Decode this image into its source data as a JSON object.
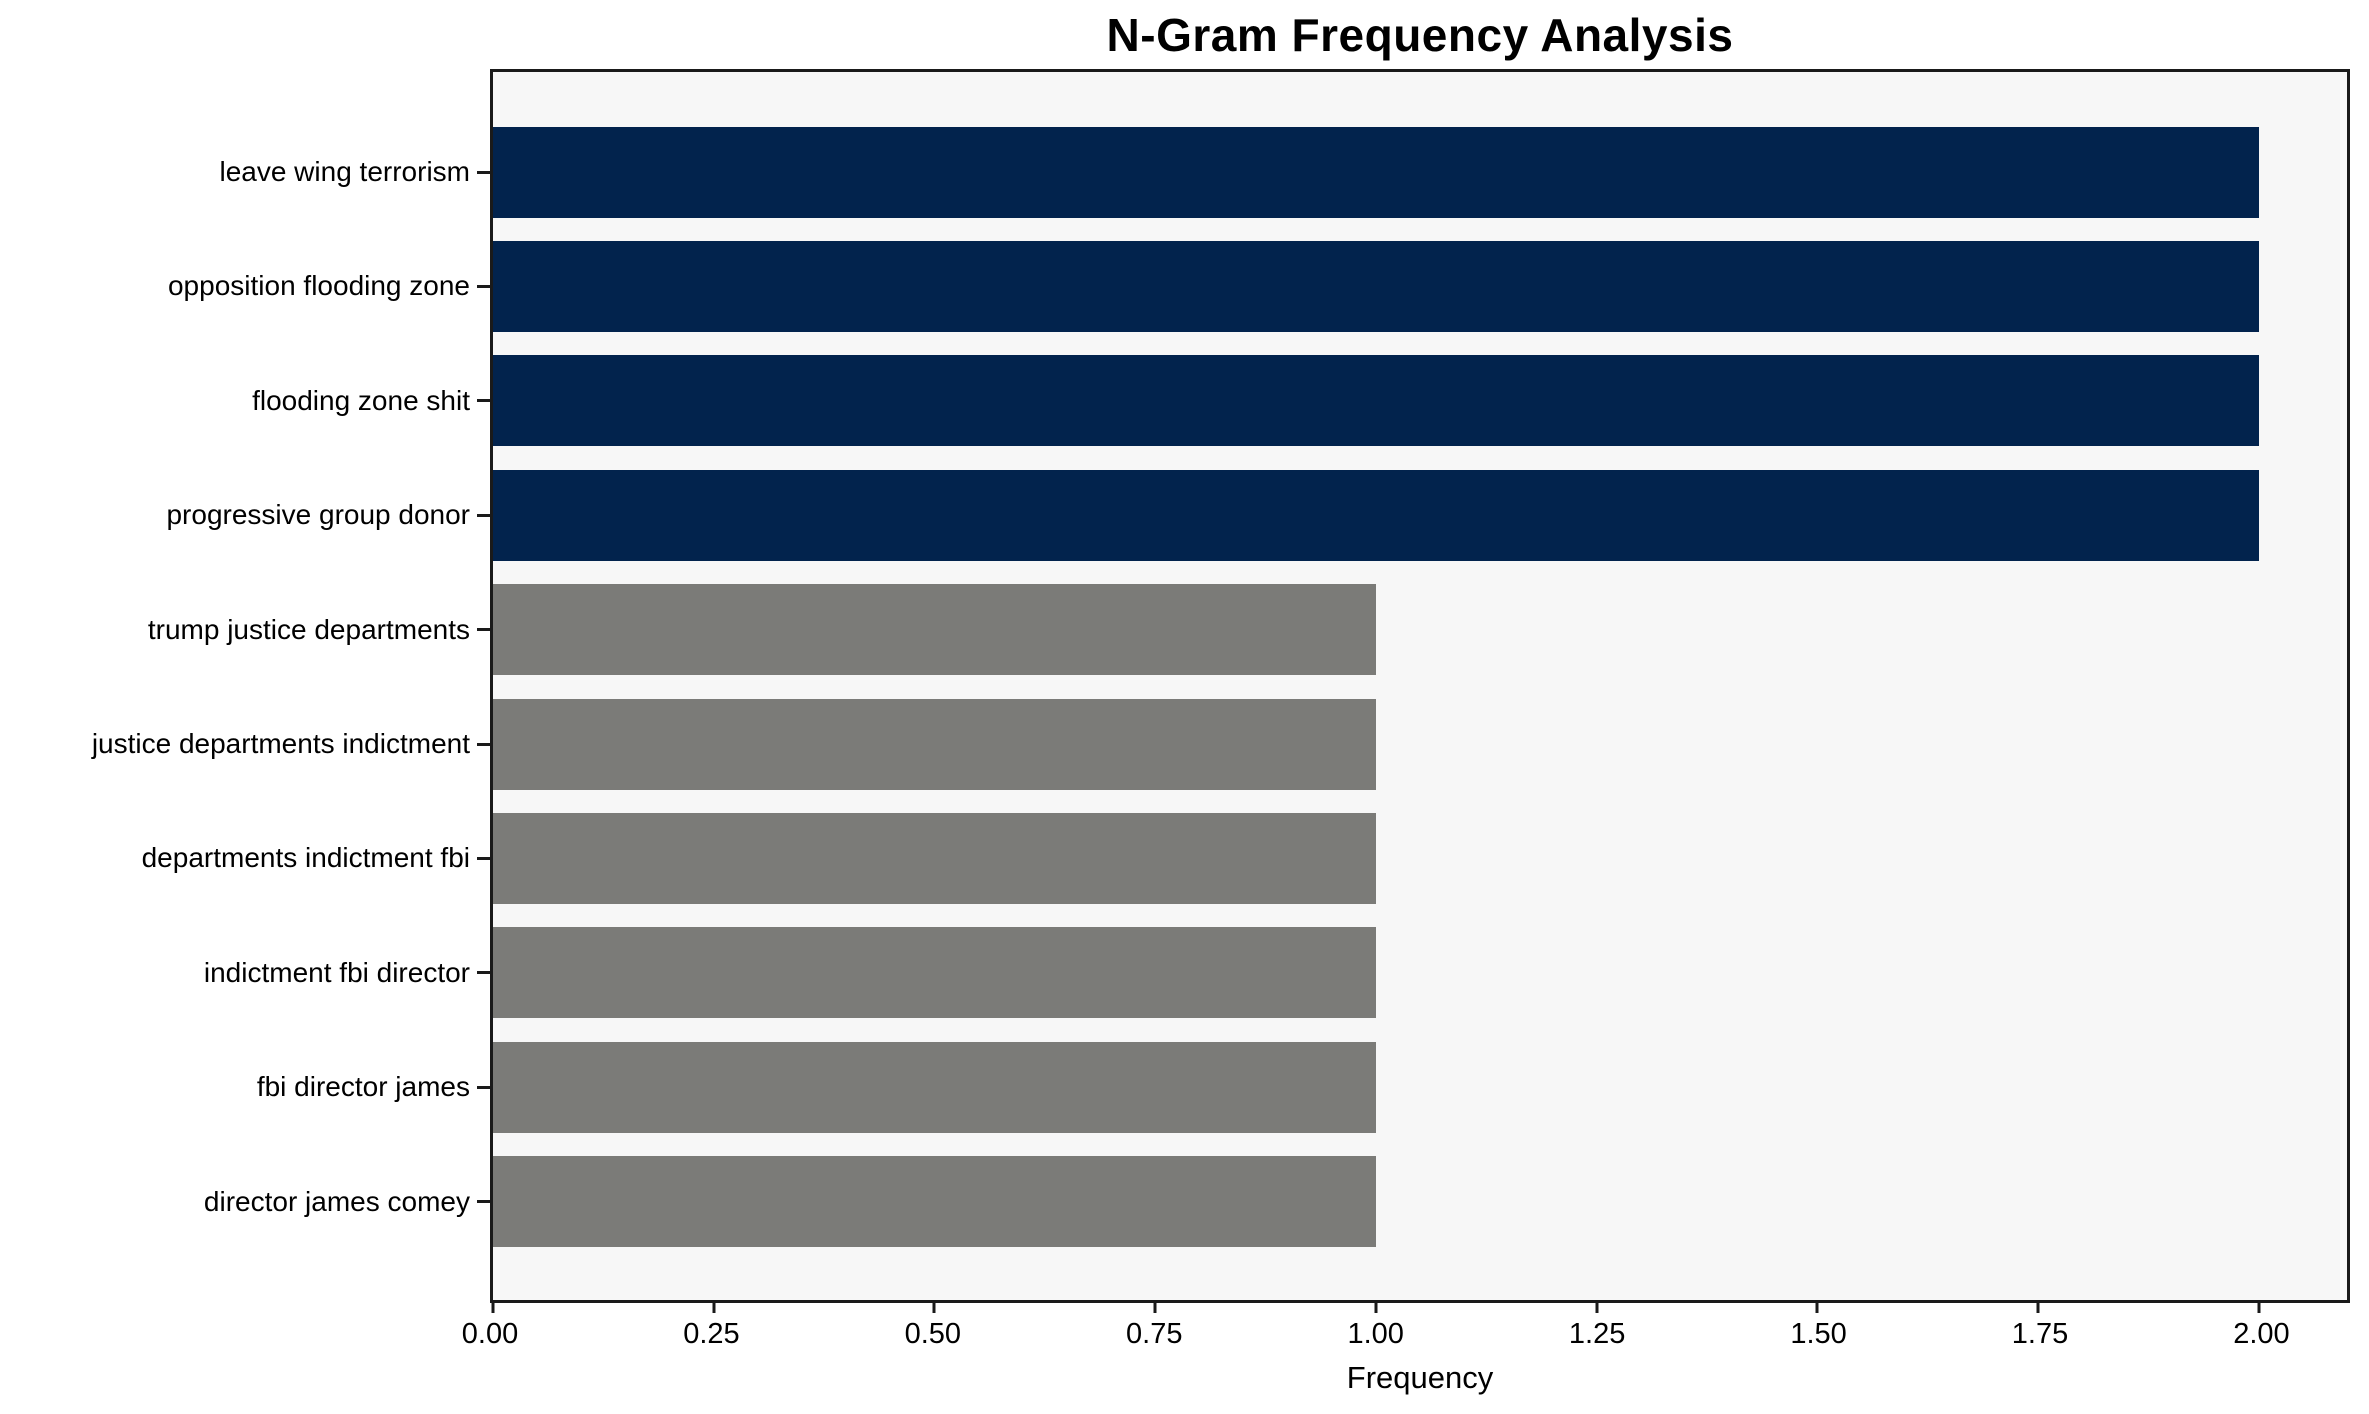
{
  "figure": {
    "background": "#ffffff"
  },
  "chart_data": {
    "type": "bar",
    "orientation": "horizontal",
    "title": "N-Gram Frequency Analysis",
    "xlabel": "Frequency",
    "ylabel": "",
    "categories": [
      "leave wing terrorism",
      "opposition flooding zone",
      "flooding zone shit",
      "progressive group donor",
      "trump justice departments",
      "justice departments indictment",
      "departments indictment fbi",
      "indictment fbi director",
      "fbi director james",
      "director james comey"
    ],
    "values": [
      2,
      2,
      2,
      2,
      1,
      1,
      1,
      1,
      1,
      1
    ],
    "bar_colors": [
      "#02234d",
      "#02234d",
      "#02234d",
      "#02234d",
      "#7b7b78",
      "#7b7b78",
      "#7b7b78",
      "#7b7b78",
      "#7b7b78",
      "#7b7b78"
    ],
    "xlim": [
      0,
      2.1
    ],
    "xticks": {
      "values": [
        0,
        0.25,
        0.5,
        0.75,
        1.0,
        1.25,
        1.5,
        1.75,
        2.0
      ],
      "labels": [
        "0.00",
        "0.25",
        "0.50",
        "0.75",
        "1.00",
        "1.25",
        "1.50",
        "1.75",
        "2.00"
      ]
    },
    "grid": false,
    "legend": false,
    "colors": {
      "highlight": "#02234d",
      "base": "#7b7b78",
      "plot_background": "#f7f7f7",
      "figure_background": "#ffffff",
      "spine": "#1a1a1a",
      "text": "#000000"
    }
  }
}
